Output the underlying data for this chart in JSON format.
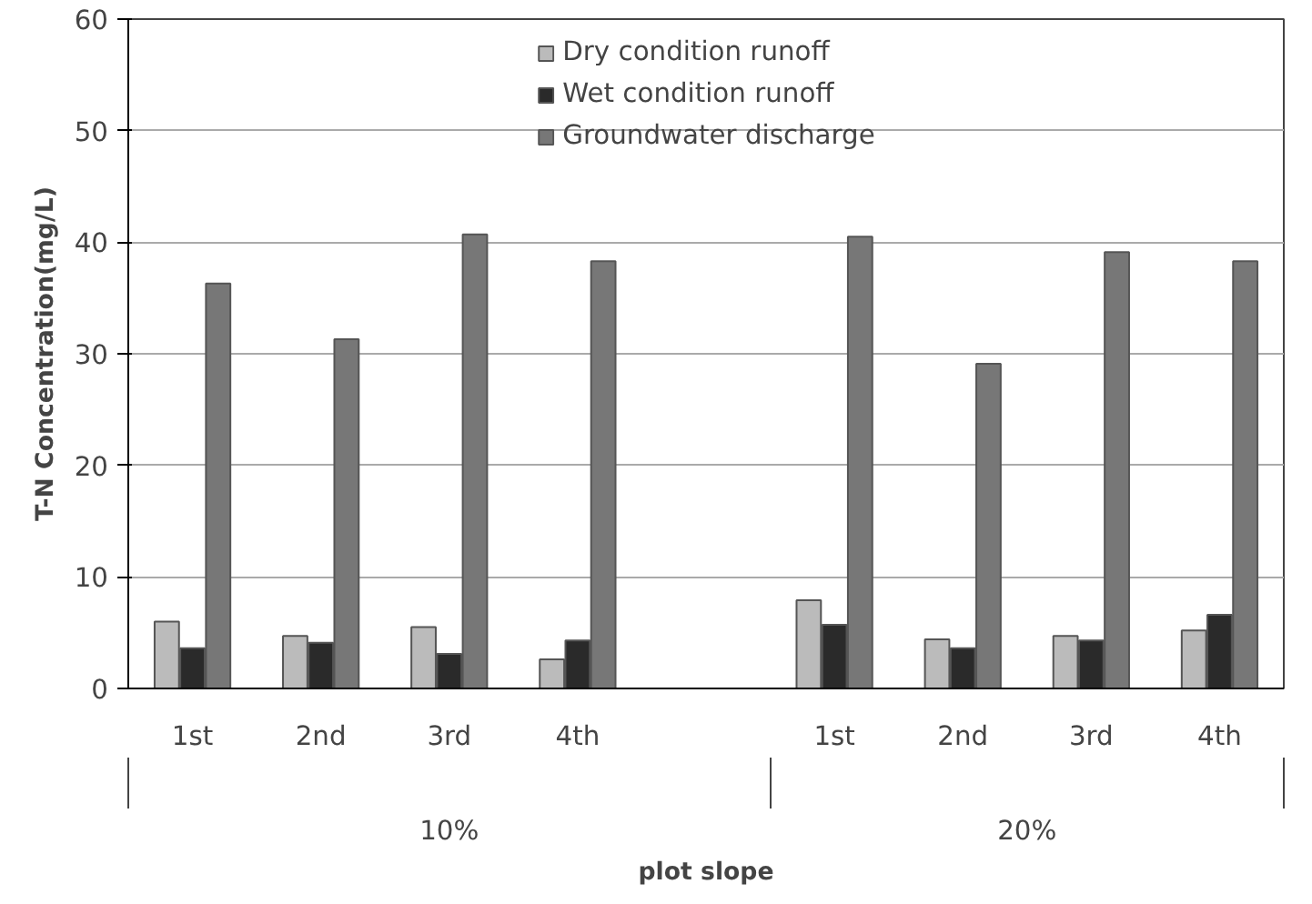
{
  "chart_data": {
    "type": "bar",
    "ylabel": "T-N Concentration(mg/L)",
    "xlabel": "plot slope",
    "categories": [
      "1st",
      "2nd",
      "3rd",
      "4th",
      null,
      "1st",
      "2nd",
      "3rd",
      "4th"
    ],
    "series": [
      {
        "name": "Dry condition runoff",
        "color": "#bbbbbb",
        "values": [
          6.0,
          4.7,
          5.5,
          2.6,
          null,
          7.9,
          4.4,
          4.7,
          5.2
        ]
      },
      {
        "name": "Wet condition runoff",
        "color": "#2a2a2a",
        "values": [
          3.6,
          4.1,
          3.1,
          4.3,
          null,
          5.7,
          3.6,
          4.3,
          6.6
        ]
      },
      {
        "name": "Groundwater discharge",
        "color": "#777777",
        "values": [
          36.3,
          31.3,
          40.7,
          38.3,
          null,
          40.5,
          29.1,
          39.1,
          38.3
        ]
      }
    ],
    "annotations": [
      "10%",
      "20%"
    ],
    "ylim": [
      0,
      60
    ],
    "yticks": [
      0,
      10,
      20,
      30,
      40,
      50,
      60
    ],
    "grid": "y",
    "legend": "top"
  }
}
